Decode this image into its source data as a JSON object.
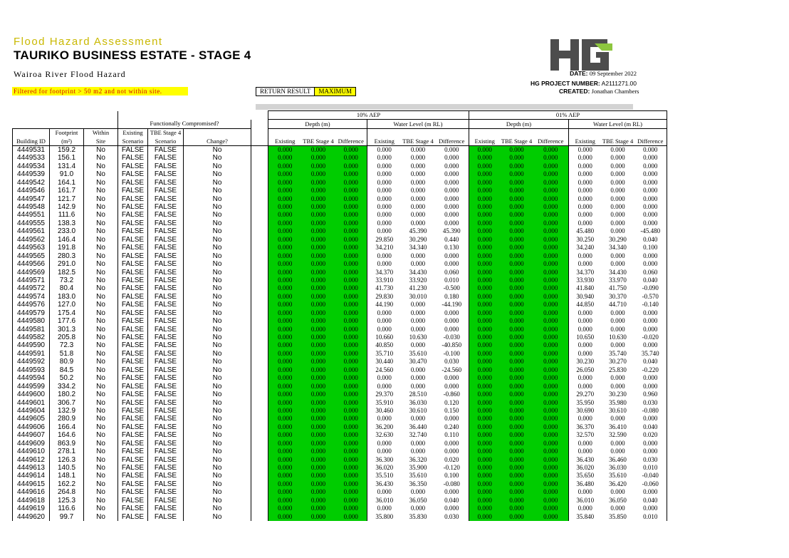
{
  "header": {
    "subtitle": "Flood Hazard Assessment",
    "title": "TAURIKO BUSINESS ESTATE - STAGE 4",
    "river": "Wairoa River Flood Hazard",
    "filter_note": "Filtered for footprint > 50 m2 and not within site.",
    "return_label": "RETURN RESULT",
    "return_value": "MAXIMUM",
    "logo_text": "HG",
    "date_label": "DATE:",
    "date_value": "09 September 2022",
    "project_label": "HG PROJECT NUMBER:",
    "project_value": "A2111271.00",
    "created_label": "CREATED:",
    "created_value": "Jonathan Chambers",
    "colors": {
      "subtitle": "#c9b800",
      "filter_bg": "#ffff00",
      "filter_text": "#d60000",
      "cell_green": "#00cc00",
      "logo_grey": "#4d4d4d",
      "logo_green": "#8dc63f"
    }
  },
  "table": {
    "group_10": "10% AEP",
    "group_01": "01% AEP",
    "func_comp": "Functionally Compromised?",
    "depth": "Depth (m)",
    "wl": "Water Level (m RL)",
    "h_footprint_1": "Footprint",
    "h_footprint_2": "(m²)",
    "h_within_1": "Within",
    "h_within_2": "Site",
    "h_exist_1": "Existing",
    "h_exist_2": "Scenario",
    "h_tbe_1": "TBE Stage 4",
    "h_tbe_2": "Scenario",
    "h_building": "Building ID",
    "h_change": "Change?",
    "h_existing": "Existing",
    "h_tbe": "TBE Stage 4",
    "h_diff": "Difference",
    "rows": [
      [
        "4449531",
        "159.2",
        "No",
        "FALSE",
        "FALSE",
        "No",
        "0.000",
        "0.000",
        "0.000",
        "0.000",
        "0.000",
        "0.000",
        "0.000",
        "0.000",
        "0.000",
        "0.000",
        "0.000",
        "0.000"
      ],
      [
        "4449533",
        "156.1",
        "No",
        "FALSE",
        "FALSE",
        "No",
        "0.000",
        "0.000",
        "0.000",
        "0.000",
        "0.000",
        "0.000",
        "0.000",
        "0.000",
        "0.000",
        "0.000",
        "0.000",
        "0.000"
      ],
      [
        "4449534",
        "131.4",
        "No",
        "FALSE",
        "FALSE",
        "No",
        "0.000",
        "0.000",
        "0.000",
        "0.000",
        "0.000",
        "0.000",
        "0.000",
        "0.000",
        "0.000",
        "0.000",
        "0.000",
        "0.000"
      ],
      [
        "4449539",
        "91.0",
        "No",
        "FALSE",
        "FALSE",
        "No",
        "0.000",
        "0.000",
        "0.000",
        "0.000",
        "0.000",
        "0.000",
        "0.000",
        "0.000",
        "0.000",
        "0.000",
        "0.000",
        "0.000"
      ],
      [
        "4449542",
        "164.1",
        "No",
        "FALSE",
        "FALSE",
        "No",
        "0.000",
        "0.000",
        "0.000",
        "0.000",
        "0.000",
        "0.000",
        "0.000",
        "0.000",
        "0.000",
        "0.000",
        "0.000",
        "0.000"
      ],
      [
        "4449546",
        "161.7",
        "No",
        "FALSE",
        "FALSE",
        "No",
        "0.000",
        "0.000",
        "0.000",
        "0.000",
        "0.000",
        "0.000",
        "0.000",
        "0.000",
        "0.000",
        "0.000",
        "0.000",
        "0.000"
      ],
      [
        "4449547",
        "121.7",
        "No",
        "FALSE",
        "FALSE",
        "No",
        "0.000",
        "0.000",
        "0.000",
        "0.000",
        "0.000",
        "0.000",
        "0.000",
        "0.000",
        "0.000",
        "0.000",
        "0.000",
        "0.000"
      ],
      [
        "4449548",
        "142.9",
        "No",
        "FALSE",
        "FALSE",
        "No",
        "0.000",
        "0.000",
        "0.000",
        "0.000",
        "0.000",
        "0.000",
        "0.000",
        "0.000",
        "0.000",
        "0.000",
        "0.000",
        "0.000"
      ],
      [
        "4449551",
        "111.6",
        "No",
        "FALSE",
        "FALSE",
        "No",
        "0.000",
        "0.000",
        "0.000",
        "0.000",
        "0.000",
        "0.000",
        "0.000",
        "0.000",
        "0.000",
        "0.000",
        "0.000",
        "0.000"
      ],
      [
        "4449555",
        "138.3",
        "No",
        "FALSE",
        "FALSE",
        "No",
        "0.000",
        "0.000",
        "0.000",
        "0.000",
        "0.000",
        "0.000",
        "0.000",
        "0.000",
        "0.000",
        "0.000",
        "0.000",
        "0.000"
      ],
      [
        "4449561",
        "233.0",
        "No",
        "FALSE",
        "FALSE",
        "No",
        "0.000",
        "0.000",
        "0.000",
        "0.000",
        "45.390",
        "45.390",
        "0.000",
        "0.000",
        "0.000",
        "45.480",
        "0.000",
        "-45.480"
      ],
      [
        "4449562",
        "146.4",
        "No",
        "FALSE",
        "FALSE",
        "No",
        "0.000",
        "0.000",
        "0.000",
        "29.850",
        "30.290",
        "0.440",
        "0.000",
        "0.000",
        "0.000",
        "30.250",
        "30.290",
        "0.040"
      ],
      [
        "4449563",
        "191.8",
        "No",
        "FALSE",
        "FALSE",
        "No",
        "0.000",
        "0.000",
        "0.000",
        "34.210",
        "34.340",
        "0.130",
        "0.000",
        "0.000",
        "0.000",
        "34.240",
        "34.340",
        "0.100"
      ],
      [
        "4449565",
        "280.3",
        "No",
        "FALSE",
        "FALSE",
        "No",
        "0.000",
        "0.000",
        "0.000",
        "0.000",
        "0.000",
        "0.000",
        "0.000",
        "0.000",
        "0.000",
        "0.000",
        "0.000",
        "0.000"
      ],
      [
        "4449566",
        "291.0",
        "No",
        "FALSE",
        "FALSE",
        "No",
        "0.000",
        "0.000",
        "0.000",
        "0.000",
        "0.000",
        "0.000",
        "0.000",
        "0.000",
        "0.000",
        "0.000",
        "0.000",
        "0.000"
      ],
      [
        "4449569",
        "182.5",
        "No",
        "FALSE",
        "FALSE",
        "No",
        "0.000",
        "0.000",
        "0.000",
        "34.370",
        "34.430",
        "0.060",
        "0.000",
        "0.000",
        "0.000",
        "34.370",
        "34.430",
        "0.060"
      ],
      [
        "4449571",
        "73.2",
        "No",
        "FALSE",
        "FALSE",
        "No",
        "0.000",
        "0.000",
        "0.000",
        "33.910",
        "33.920",
        "0.010",
        "0.000",
        "0.000",
        "0.000",
        "33.930",
        "33.970",
        "0.040"
      ],
      [
        "4449572",
        "80.4",
        "No",
        "FALSE",
        "FALSE",
        "No",
        "0.000",
        "0.000",
        "0.000",
        "41.730",
        "41.230",
        "-0.500",
        "0.000",
        "0.000",
        "0.000",
        "41.840",
        "41.750",
        "-0.090"
      ],
      [
        "4449574",
        "183.0",
        "No",
        "FALSE",
        "FALSE",
        "No",
        "0.000",
        "0.000",
        "0.000",
        "29.830",
        "30.010",
        "0.180",
        "0.000",
        "0.000",
        "0.000",
        "30.940",
        "30.370",
        "-0.570"
      ],
      [
        "4449576",
        "127.0",
        "No",
        "FALSE",
        "FALSE",
        "No",
        "0.000",
        "0.000",
        "0.000",
        "44.190",
        "0.000",
        "-44.190",
        "0.000",
        "0.000",
        "0.000",
        "44.850",
        "44.710",
        "-0.140"
      ],
      [
        "4449579",
        "175.4",
        "No",
        "FALSE",
        "FALSE",
        "No",
        "0.000",
        "0.000",
        "0.000",
        "0.000",
        "0.000",
        "0.000",
        "0.000",
        "0.000",
        "0.000",
        "0.000",
        "0.000",
        "0.000"
      ],
      [
        "4449580",
        "177.6",
        "No",
        "FALSE",
        "FALSE",
        "No",
        "0.000",
        "0.000",
        "0.000",
        "0.000",
        "0.000",
        "0.000",
        "0.000",
        "0.000",
        "0.000",
        "0.000",
        "0.000",
        "0.000"
      ],
      [
        "4449581",
        "301.3",
        "No",
        "FALSE",
        "FALSE",
        "No",
        "0.000",
        "0.000",
        "0.000",
        "0.000",
        "0.000",
        "0.000",
        "0.000",
        "0.000",
        "0.000",
        "0.000",
        "0.000",
        "0.000"
      ],
      [
        "4449582",
        "205.8",
        "No",
        "FALSE",
        "FALSE",
        "No",
        "0.000",
        "0.000",
        "0.000",
        "10.660",
        "10.630",
        "-0.030",
        "0.000",
        "0.000",
        "0.000",
        "10.650",
        "10.630",
        "-0.020"
      ],
      [
        "4449590",
        "72.3",
        "No",
        "FALSE",
        "FALSE",
        "No",
        "0.000",
        "0.000",
        "0.000",
        "40.850",
        "0.000",
        "-40.850",
        "0.000",
        "0.000",
        "0.000",
        "0.000",
        "0.000",
        "0.000"
      ],
      [
        "4449591",
        "51.8",
        "No",
        "FALSE",
        "FALSE",
        "No",
        "0.000",
        "0.000",
        "0.000",
        "35.710",
        "35.610",
        "-0.100",
        "0.000",
        "0.000",
        "0.000",
        "0.000",
        "35.740",
        "35.740"
      ],
      [
        "4449592",
        "80.9",
        "No",
        "FALSE",
        "FALSE",
        "No",
        "0.000",
        "0.000",
        "0.000",
        "30.440",
        "30.470",
        "0.030",
        "0.000",
        "0.000",
        "0.000",
        "30.230",
        "30.270",
        "0.040"
      ],
      [
        "4449593",
        "84.5",
        "No",
        "FALSE",
        "FALSE",
        "No",
        "0.000",
        "0.000",
        "0.000",
        "24.560",
        "0.000",
        "-24.560",
        "0.000",
        "0.000",
        "0.000",
        "26.050",
        "25.830",
        "-0.220"
      ],
      [
        "4449594",
        "50.2",
        "No",
        "FALSE",
        "FALSE",
        "No",
        "0.000",
        "0.000",
        "0.000",
        "0.000",
        "0.000",
        "0.000",
        "0.000",
        "0.000",
        "0.000",
        "0.000",
        "0.000",
        "0.000"
      ],
      [
        "4449599",
        "334.2",
        "No",
        "FALSE",
        "FALSE",
        "No",
        "0.000",
        "0.000",
        "0.000",
        "0.000",
        "0.000",
        "0.000",
        "0.000",
        "0.000",
        "0.000",
        "0.000",
        "0.000",
        "0.000"
      ],
      [
        "4449600",
        "180.2",
        "No",
        "FALSE",
        "FALSE",
        "No",
        "0.000",
        "0.000",
        "0.000",
        "29.370",
        "28.510",
        "-0.860",
        "0.000",
        "0.000",
        "0.000",
        "29.270",
        "30.230",
        "0.960"
      ],
      [
        "4449601",
        "306.7",
        "No",
        "FALSE",
        "FALSE",
        "No",
        "0.000",
        "0.000",
        "0.000",
        "35.910",
        "36.030",
        "0.120",
        "0.000",
        "0.000",
        "0.000",
        "35.950",
        "35.980",
        "0.030"
      ],
      [
        "4449604",
        "132.9",
        "No",
        "FALSE",
        "FALSE",
        "No",
        "0.000",
        "0.000",
        "0.000",
        "30.460",
        "30.610",
        "0.150",
        "0.000",
        "0.000",
        "0.000",
        "30.690",
        "30.610",
        "-0.080"
      ],
      [
        "4449605",
        "280.9",
        "No",
        "FALSE",
        "FALSE",
        "No",
        "0.000",
        "0.000",
        "0.000",
        "0.000",
        "0.000",
        "0.000",
        "0.000",
        "0.000",
        "0.000",
        "0.000",
        "0.000",
        "0.000"
      ],
      [
        "4449606",
        "166.4",
        "No",
        "FALSE",
        "FALSE",
        "No",
        "0.000",
        "0.000",
        "0.000",
        "36.200",
        "36.440",
        "0.240",
        "0.000",
        "0.000",
        "0.000",
        "36.370",
        "36.410",
        "0.040"
      ],
      [
        "4449607",
        "164.6",
        "No",
        "FALSE",
        "FALSE",
        "No",
        "0.000",
        "0.000",
        "0.000",
        "32.630",
        "32.740",
        "0.110",
        "0.000",
        "0.000",
        "0.000",
        "32.570",
        "32.590",
        "0.020"
      ],
      [
        "4449609",
        "863.9",
        "No",
        "FALSE",
        "FALSE",
        "No",
        "0.000",
        "0.000",
        "0.000",
        "0.000",
        "0.000",
        "0.000",
        "0.000",
        "0.000",
        "0.000",
        "0.000",
        "0.000",
        "0.000"
      ],
      [
        "4449610",
        "278.1",
        "No",
        "FALSE",
        "FALSE",
        "No",
        "0.000",
        "0.000",
        "0.000",
        "0.000",
        "0.000",
        "0.000",
        "0.000",
        "0.000",
        "0.000",
        "0.000",
        "0.000",
        "0.000"
      ],
      [
        "4449612",
        "126.3",
        "No",
        "FALSE",
        "FALSE",
        "No",
        "0.000",
        "0.000",
        "0.000",
        "36.300",
        "36.320",
        "0.020",
        "0.000",
        "0.000",
        "0.000",
        "36.430",
        "36.460",
        "0.030"
      ],
      [
        "4449613",
        "140.5",
        "No",
        "FALSE",
        "FALSE",
        "No",
        "0.000",
        "0.000",
        "0.000",
        "36.020",
        "35.900",
        "-0.120",
        "0.000",
        "0.000",
        "0.000",
        "36.020",
        "36.030",
        "0.010"
      ],
      [
        "4449614",
        "148.1",
        "No",
        "FALSE",
        "FALSE",
        "No",
        "0.000",
        "0.000",
        "0.000",
        "35.510",
        "35.610",
        "0.100",
        "0.000",
        "0.000",
        "0.000",
        "35.650",
        "35.610",
        "-0.040"
      ],
      [
        "4449615",
        "162.2",
        "No",
        "FALSE",
        "FALSE",
        "No",
        "0.000",
        "0.000",
        "0.000",
        "36.430",
        "36.350",
        "-0.080",
        "0.000",
        "0.000",
        "0.000",
        "36.480",
        "36.420",
        "-0.060"
      ],
      [
        "4449616",
        "264.8",
        "No",
        "FALSE",
        "FALSE",
        "No",
        "0.000",
        "0.000",
        "0.000",
        "0.000",
        "0.000",
        "0.000",
        "0.000",
        "0.000",
        "0.000",
        "0.000",
        "0.000",
        "0.000"
      ],
      [
        "4449618",
        "125.3",
        "No",
        "FALSE",
        "FALSE",
        "No",
        "0.000",
        "0.000",
        "0.000",
        "36.010",
        "36.050",
        "0.040",
        "0.000",
        "0.000",
        "0.000",
        "36.010",
        "36.050",
        "0.040"
      ],
      [
        "4449619",
        "116.6",
        "No",
        "FALSE",
        "FALSE",
        "No",
        "0.000",
        "0.000",
        "0.000",
        "0.000",
        "0.000",
        "0.000",
        "0.000",
        "0.000",
        "0.000",
        "0.000",
        "0.000",
        "0.000"
      ],
      [
        "4449620",
        "99.7",
        "No",
        "FALSE",
        "FALSE",
        "No",
        "0.000",
        "0.000",
        "0.000",
        "35.800",
        "35.830",
        "0.030",
        "0.000",
        "0.000",
        "0.000",
        "35.840",
        "35.850",
        "0.010"
      ]
    ]
  }
}
